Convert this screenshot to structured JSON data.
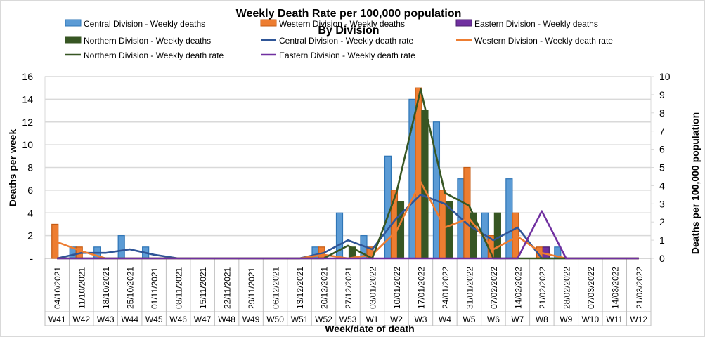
{
  "chart_data": {
    "type": "bar",
    "title": "Weekly Death Rate per 100,000 population",
    "subtitle": "By Division",
    "xlabel": "Week/date of death",
    "ylabel": "Deaths  per week",
    "y2label": "Deaths per 100,000 population",
    "ylim": [
      0,
      16
    ],
    "y2lim": [
      0,
      10
    ],
    "yticks": [
      "-",
      "2",
      "4",
      "6",
      "8",
      "10",
      "12",
      "14",
      "16"
    ],
    "y2ticks": [
      "0",
      "1",
      "2",
      "3",
      "4",
      "5",
      "6",
      "7",
      "8",
      "9",
      "10"
    ],
    "grid": true,
    "legend_placement": "top",
    "dates": [
      "04/10/2021",
      "11/10/2021",
      "18/10/2021",
      "25/10/2021",
      "01/11/2021",
      "08/11/2021",
      "15/11/2021",
      "22/11/2021",
      "29/11/2021",
      "06/12/2021",
      "13/12/2021",
      "20/12/2021",
      "27/12/2021",
      "03/01/2022",
      "10/01/2022",
      "17/01/2022",
      "24/01/2022",
      "31/01/2022",
      "07/02/2022",
      "14/02/2022",
      "21/02/2022",
      "28/02/2022",
      "07/03/2022",
      "14/03/2022",
      "21/03/2022"
    ],
    "categories": [
      "W41",
      "W42",
      "W43",
      "W44",
      "W45",
      "W46",
      "W47",
      "W48",
      "W49",
      "W50",
      "W51",
      "W52",
      "W53",
      "W1",
      "W2",
      "W3",
      "W4",
      "W5",
      "W6",
      "W7",
      "W8",
      "W9",
      "W10",
      "W11",
      "W12"
    ],
    "bar_series": [
      {
        "name": "Central Division - Weekly deaths",
        "color": "#5b9bd5",
        "stroke": "#2e75b6",
        "values": [
          0,
          1,
          1,
          2,
          1,
          0,
          0,
          0,
          0,
          0,
          0,
          1,
          4,
          2,
          9,
          14,
          12,
          7,
          4,
          7,
          0,
          1,
          0,
          0,
          0
        ]
      },
      {
        "name": "Western Division - Weekly deaths",
        "color": "#ed7d31",
        "stroke": "#c55a11",
        "values": [
          3,
          1,
          0,
          0,
          0,
          0,
          0,
          0,
          0,
          0,
          0,
          1,
          0,
          1,
          6,
          15,
          6,
          8,
          2,
          4,
          1,
          0,
          0,
          0,
          0
        ]
      },
      {
        "name": "Northern Division - Weekly deaths",
        "color": "#375623",
        "stroke": "#375623",
        "values": [
          0,
          0,
          0,
          0,
          0,
          0,
          0,
          0,
          0,
          0,
          0,
          0,
          1,
          0,
          5,
          13,
          5,
          4,
          4,
          0,
          0,
          0,
          0,
          0,
          0
        ]
      },
      {
        "name": "Eastern Division - Weekly deaths",
        "color": "#7030a0",
        "stroke": "#4b1f6f",
        "values": [
          0,
          0,
          0,
          0,
          0,
          0,
          0,
          0,
          0,
          0,
          0,
          0,
          0,
          0,
          0,
          0,
          0,
          0,
          0,
          0,
          1,
          0,
          0,
          0,
          0
        ]
      }
    ],
    "line_series": [
      {
        "name": "Central Division - Weekly death rate",
        "color": "#2f5597",
        "values": [
          0,
          0.3,
          0.3,
          0.5,
          0.2,
          0,
          0,
          0,
          0,
          0,
          0,
          0.3,
          1.0,
          0.5,
          2.2,
          3.5,
          3.0,
          1.8,
          1.0,
          1.7,
          0,
          0,
          0,
          0,
          0
        ]
      },
      {
        "name": "Western Division - Weekly death rate",
        "color": "#ed7d31",
        "values": [
          0.9,
          0.4,
          0,
          0,
          0,
          0,
          0,
          0,
          0,
          0,
          0,
          0.2,
          0,
          0.2,
          1.5,
          4.2,
          1.7,
          2.2,
          0.5,
          1.2,
          0.3,
          0,
          0,
          0,
          0
        ]
      },
      {
        "name": "Northern Division - Weekly death rate",
        "color": "#375623",
        "values": [
          0,
          0,
          0,
          0,
          0,
          0,
          0,
          0,
          0,
          0,
          0,
          0,
          0.7,
          0,
          3.6,
          9.3,
          3.6,
          2.9,
          0,
          0,
          0,
          0,
          0,
          0,
          0
        ]
      },
      {
        "name": "Eastern Division - Weekly death rate",
        "color": "#7030a0",
        "values": [
          0,
          0,
          0,
          0,
          0,
          0,
          0,
          0,
          0,
          0,
          0,
          0,
          0,
          0,
          0,
          0,
          0,
          0,
          0,
          0,
          2.6,
          0,
          0,
          0,
          0
        ]
      }
    ],
    "legend_order": [
      "Central Division - Weekly deaths",
      "Western Division - Weekly deaths",
      "Eastern Division - Weekly deaths",
      "Northern Division - Weekly deaths",
      "Central Division - Weekly death rate",
      "Western Division - Weekly death rate",
      "Northern Division - Weekly death rate",
      "Eastern Division - Weekly death rate"
    ]
  }
}
